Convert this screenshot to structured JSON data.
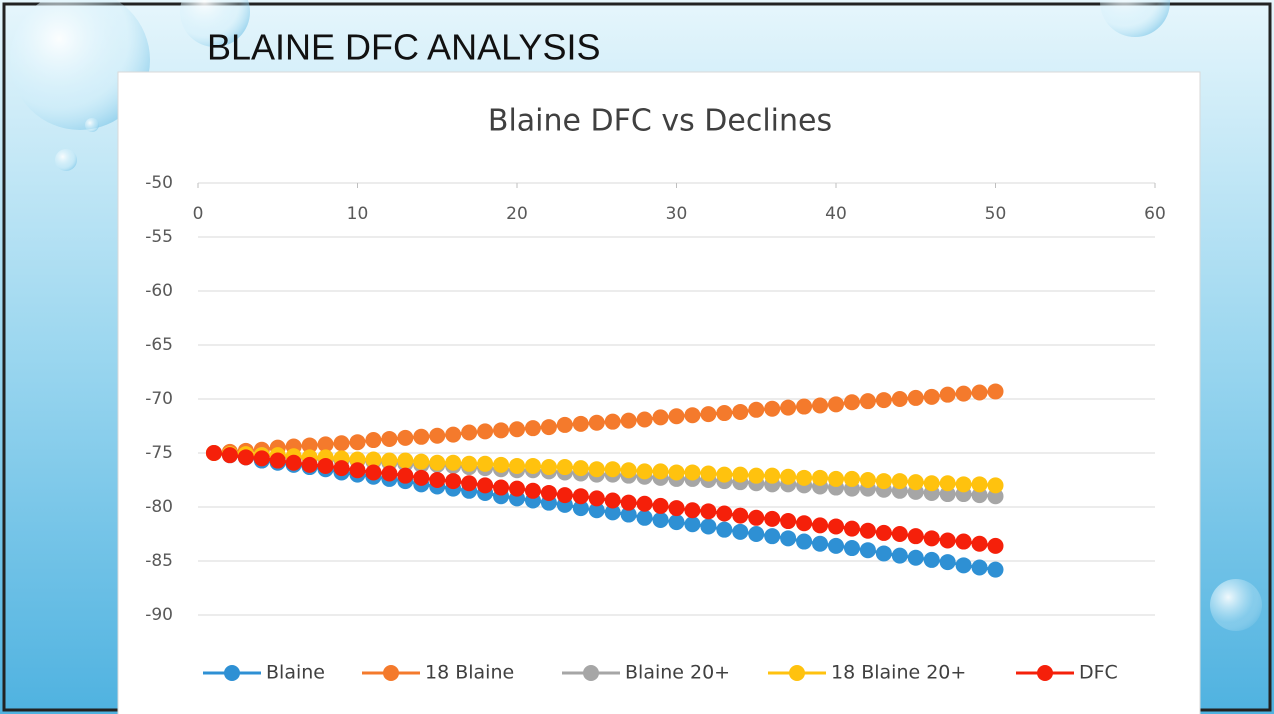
{
  "slide_title": "BLAINE DFC ANALYSIS",
  "chart_data": {
    "type": "line",
    "title": "Blaine DFC vs Declines",
    "x": [
      1,
      2,
      3,
      4,
      5,
      6,
      7,
      8,
      9,
      10,
      11,
      12,
      13,
      14,
      15,
      16,
      17,
      18,
      19,
      20,
      21,
      22,
      23,
      24,
      25,
      26,
      27,
      28,
      29,
      30,
      31,
      32,
      33,
      34,
      35,
      36,
      37,
      38,
      39,
      40,
      41,
      42,
      43,
      44,
      45,
      46,
      47,
      48,
      49,
      50
    ],
    "xlim": [
      0,
      60
    ],
    "xticks": [
      0,
      10,
      20,
      30,
      40,
      50,
      60
    ],
    "ylim": [
      -90,
      -50
    ],
    "yticks": [
      -50,
      -55,
      -60,
      -65,
      -70,
      -75,
      -80,
      -85,
      -90
    ],
    "grid": true,
    "legend": "bottom",
    "series": [
      {
        "name": "Blaine",
        "color": "#2e90d4",
        "values": [
          -75.0,
          -75.2,
          -75.4,
          -75.7,
          -75.9,
          -76.1,
          -76.3,
          -76.5,
          -76.8,
          -77.0,
          -77.2,
          -77.4,
          -77.6,
          -77.9,
          -78.1,
          -78.3,
          -78.5,
          -78.7,
          -79.0,
          -79.2,
          -79.4,
          -79.6,
          -79.8,
          -80.1,
          -80.3,
          -80.5,
          -80.7,
          -81.0,
          -81.2,
          -81.4,
          -81.6,
          -81.8,
          -82.1,
          -82.3,
          -82.5,
          -82.7,
          -82.9,
          -83.2,
          -83.4,
          -83.6,
          -83.8,
          -84.0,
          -84.3,
          -84.5,
          -84.7,
          -84.9,
          -85.1,
          -85.4,
          -85.6,
          -85.8
        ]
      },
      {
        "name": "18 Blaine",
        "color": "#f47a2c",
        "values": [
          -75.0,
          -74.9,
          -74.8,
          -74.7,
          -74.5,
          -74.4,
          -74.3,
          -74.2,
          -74.1,
          -74.0,
          -73.8,
          -73.7,
          -73.6,
          -73.5,
          -73.4,
          -73.3,
          -73.1,
          -73.0,
          -72.9,
          -72.8,
          -72.7,
          -72.6,
          -72.4,
          -72.3,
          -72.2,
          -72.1,
          -72.0,
          -71.9,
          -71.7,
          -71.6,
          -71.5,
          -71.4,
          -71.3,
          -71.2,
          -71.0,
          -70.9,
          -70.8,
          -70.7,
          -70.6,
          -70.5,
          -70.3,
          -70.2,
          -70.1,
          -70.0,
          -69.9,
          -69.8,
          -69.6,
          -69.5,
          -69.4,
          -69.3
        ]
      },
      {
        "name": "Blaine 20+",
        "color": "#a6a6a6",
        "values": [
          -75.0,
          -75.1,
          -75.2,
          -75.2,
          -75.3,
          -75.4,
          -75.5,
          -75.6,
          -75.7,
          -75.7,
          -75.8,
          -75.9,
          -76.0,
          -76.1,
          -76.1,
          -76.2,
          -76.3,
          -76.4,
          -76.5,
          -76.6,
          -76.6,
          -76.7,
          -76.8,
          -76.9,
          -77.0,
          -77.0,
          -77.1,
          -77.2,
          -77.3,
          -77.4,
          -77.4,
          -77.5,
          -77.6,
          -77.7,
          -77.8,
          -77.9,
          -77.9,
          -78.0,
          -78.1,
          -78.2,
          -78.3,
          -78.3,
          -78.4,
          -78.5,
          -78.6,
          -78.7,
          -78.8,
          -78.8,
          -78.9,
          -79.0
        ]
      },
      {
        "name": "18 Blaine 20+",
        "color": "#ffc20e",
        "values": [
          -75.0,
          -75.1,
          -75.1,
          -75.2,
          -75.2,
          -75.3,
          -75.4,
          -75.4,
          -75.5,
          -75.6,
          -75.6,
          -75.7,
          -75.7,
          -75.8,
          -75.9,
          -75.9,
          -76.0,
          -76.0,
          -76.1,
          -76.2,
          -76.2,
          -76.3,
          -76.3,
          -76.4,
          -76.5,
          -76.5,
          -76.6,
          -76.7,
          -76.7,
          -76.8,
          -76.8,
          -76.9,
          -77.0,
          -77.0,
          -77.1,
          -77.1,
          -77.2,
          -77.3,
          -77.3,
          -77.4,
          -77.4,
          -77.5,
          -77.6,
          -77.6,
          -77.7,
          -77.8,
          -77.8,
          -77.9,
          -77.9,
          -78.0
        ]
      },
      {
        "name": "DFC",
        "color": "#f5200a",
        "values": [
          -75.0,
          -75.2,
          -75.4,
          -75.5,
          -75.7,
          -75.9,
          -76.1,
          -76.2,
          -76.4,
          -76.6,
          -76.8,
          -76.9,
          -77.1,
          -77.3,
          -77.5,
          -77.6,
          -77.8,
          -78.0,
          -78.2,
          -78.3,
          -78.5,
          -78.7,
          -78.9,
          -79.0,
          -79.2,
          -79.4,
          -79.6,
          -79.7,
          -79.9,
          -80.1,
          -80.3,
          -80.4,
          -80.6,
          -80.8,
          -81.0,
          -81.1,
          -81.3,
          -81.5,
          -81.7,
          -81.8,
          -82.0,
          -82.2,
          -82.4,
          -82.5,
          -82.7,
          -82.9,
          -83.1,
          -83.2,
          -83.4,
          -83.6
        ]
      }
    ]
  }
}
